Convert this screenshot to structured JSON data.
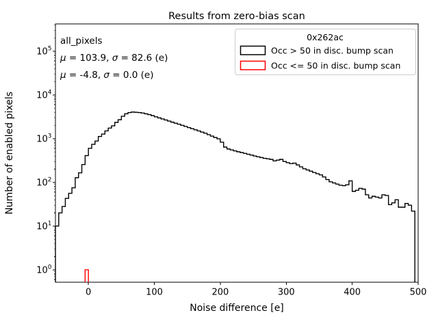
{
  "figure": {
    "background": "#ffffff"
  },
  "title": "Results from zero-bias scan",
  "axes": {
    "xlabel": "Noise difference [e]",
    "ylabel": "Number of enabled pixels",
    "x_ticks": [
      0,
      100,
      200,
      300,
      400,
      500
    ],
    "y_tick_exponents": [
      0,
      1,
      2,
      3,
      4,
      5
    ]
  },
  "annotations": {
    "dataset_label": "all_pixels",
    "stats_black": "μ = 103.9, σ = 82.6 (e)",
    "stats_red": "μ = -4.8, σ = 0.0 (e)"
  },
  "legend": {
    "title": "0x262ac",
    "entries": [
      {
        "label": "Occ > 50 in disc. bump scan",
        "color": "#000000"
      },
      {
        "label": "Occ <= 50 in disc. bump scan",
        "color": "#ff0000"
      }
    ]
  },
  "colors": {
    "black": "#000000",
    "red": "#ff0000",
    "spine": "#000000",
    "legend_border": "#cccccc",
    "background": "#ffffff"
  },
  "chart_data": {
    "type": "histogram",
    "histtype": "step",
    "title": "Results from zero-bias scan",
    "xlabel": "Noise difference [e]",
    "ylabel": "Number of enabled pixels",
    "x_scale": "linear",
    "y_scale": "log",
    "xlim": [
      -50,
      500
    ],
    "ylim": [
      0.52,
      420000
    ],
    "grid": false,
    "legend_position": "upper right",
    "bin_width": 5,
    "bin_start": -50,
    "series": [
      {
        "name": "Occ > 50 in disc. bump scan",
        "color": "#000000",
        "bin_counts": [
          10,
          20,
          28,
          43,
          56,
          75,
          128,
          165,
          255,
          410,
          600,
          740,
          880,
          1120,
          1270,
          1500,
          1740,
          1960,
          2350,
          2700,
          3250,
          3700,
          3950,
          4050,
          4000,
          3950,
          3850,
          3700,
          3550,
          3350,
          3150,
          2980,
          2820,
          2670,
          2520,
          2380,
          2250,
          2130,
          2010,
          1900,
          1790,
          1690,
          1590,
          1500,
          1410,
          1330,
          1230,
          1140,
          1060,
          990,
          830,
          640,
          580,
          550,
          525,
          500,
          480,
          460,
          440,
          420,
          400,
          385,
          370,
          355,
          345,
          335,
          310,
          322,
          335,
          300,
          282,
          268,
          276,
          250,
          226,
          205,
          192,
          180,
          168,
          158,
          148,
          133,
          116,
          103,
          97,
          91,
          86,
          84,
          88,
          108,
          62,
          66,
          73,
          70,
          52,
          44,
          48,
          46,
          44,
          52,
          50,
          31,
          34,
          40,
          27,
          27,
          33,
          30,
          22
        ]
      },
      {
        "name": "Occ <= 50 in disc. bump scan",
        "color": "#ff0000",
        "bars": [
          {
            "bin_start": -5,
            "bin_end": 0,
            "count": 1
          }
        ]
      }
    ]
  }
}
